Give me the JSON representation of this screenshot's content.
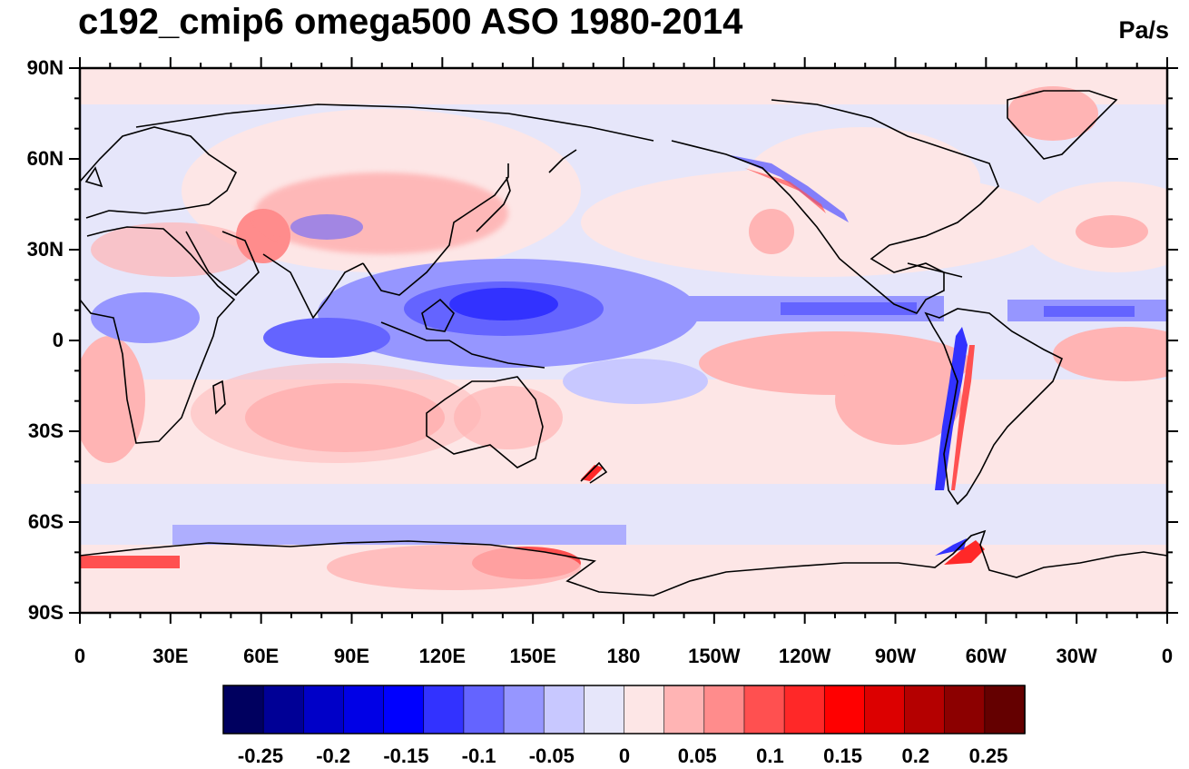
{
  "title": "c192_cmip6 omega500 ASO 1980-2014",
  "units": "Pa/s",
  "lat_labels": [
    "90N",
    "60N",
    "30N",
    "0",
    "30S",
    "60S",
    "90S"
  ],
  "lon_labels": [
    "0",
    "30E",
    "60E",
    "90E",
    "120E",
    "150E",
    "180",
    "150W",
    "120W",
    "90W",
    "60W",
    "30W",
    "0"
  ],
  "colorbar": {
    "labels": [
      "-0.25",
      "-0.2",
      "-0.15",
      "-0.1",
      "-0.05",
      "0",
      "0.05",
      "0.1",
      "0.15",
      "0.2",
      "0.25"
    ],
    "colors": [
      "#00005f",
      "#000096",
      "#0000c8",
      "#0000e6",
      "#0000ff",
      "#3232ff",
      "#6464ff",
      "#9696ff",
      "#c8c8ff",
      "#e6e6fa",
      "#fde6e6",
      "#ffb4b4",
      "#ff8c8c",
      "#ff5050",
      "#ff2828",
      "#ff0000",
      "#dc0000",
      "#b40000",
      "#8c0000",
      "#640000"
    ]
  },
  "colors": {
    "ocean_neutral_blue": "#e6e6fa",
    "neutral_pink": "#fde6e6",
    "coastline": "#000000"
  }
}
